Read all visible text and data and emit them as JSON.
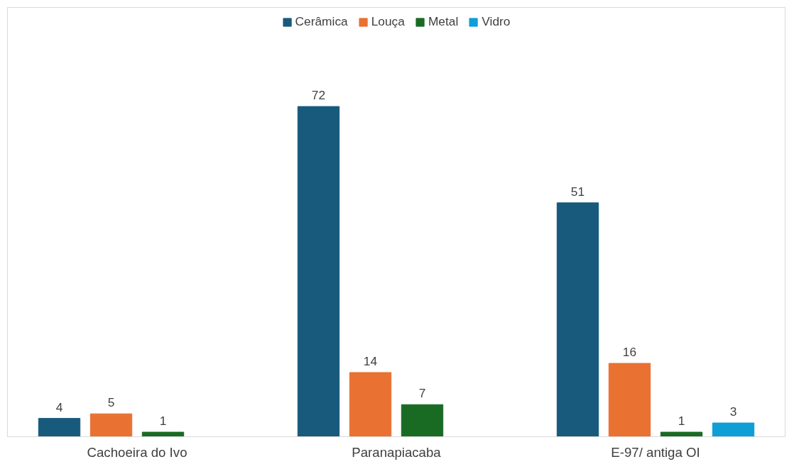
{
  "chart_data": {
    "type": "bar",
    "categories": [
      "Cachoeira do Ivo",
      "Paranapiacaba",
      "E-97/ antiga OI"
    ],
    "series": [
      {
        "name": "Cerâmica",
        "color": "#175a7c",
        "values": [
          4,
          72,
          51
        ]
      },
      {
        "name": "Louça",
        "color": "#e97132",
        "values": [
          5,
          14,
          16
        ]
      },
      {
        "name": "Metal",
        "color": "#196b24",
        "values": [
          1,
          7,
          1
        ]
      },
      {
        "name": "Vidro",
        "color": "#0f9ed5",
        "values": [
          null,
          null,
          3
        ]
      }
    ],
    "data_labels": true,
    "legend": "top",
    "grid": false
  }
}
